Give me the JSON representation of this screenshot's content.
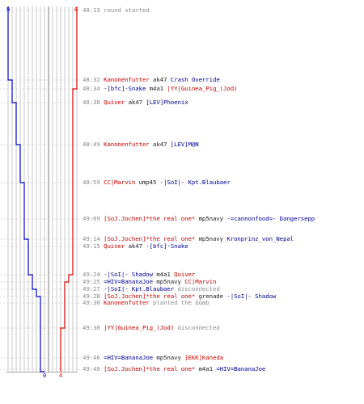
{
  "score": {
    "blue_start": "9",
    "red_start": "8",
    "blue_end": "0",
    "red_end": "4"
  },
  "colors": {
    "blue_team": "#000099",
    "red_team": "#cc0000",
    "time": "#8a8a8a",
    "grid": "#b8b8b8"
  },
  "events": [
    {
      "time": "48:13",
      "parts": [
        {
          "text": "round started",
          "c": "gray"
        }
      ]
    },
    {
      "time": "48:32",
      "parts": [
        {
          "text": "Kanonenfutter",
          "c": "red"
        },
        {
          "text": "ak47",
          "c": "dark"
        },
        {
          "text": "Crash Override",
          "c": "blue"
        }
      ]
    },
    {
      "time": "48:34",
      "parts": [
        {
          "text": "-[bfc]-Snake",
          "c": "blue"
        },
        {
          "text": "m4a1",
          "c": "dark"
        },
        {
          "text": "|YY|Guinea_Pig_(Jod)",
          "c": "red"
        }
      ]
    },
    {
      "time": "48:38",
      "parts": [
        {
          "text": "Quiver",
          "c": "red"
        },
        {
          "text": "ak47",
          "c": "dark"
        },
        {
          "text": "[LEV]Phoenix",
          "c": "blue"
        }
      ]
    },
    {
      "time": "48:49",
      "parts": [
        {
          "text": "Kanonenfutter",
          "c": "red"
        },
        {
          "text": "ak47",
          "c": "dark"
        },
        {
          "text": "[LEV]M@N",
          "c": "blue"
        }
      ]
    },
    {
      "time": "48:59",
      "parts": [
        {
          "text": "CC|Marvin",
          "c": "red"
        },
        {
          "text": "ump45",
          "c": "dark"
        },
        {
          "text": "-|SoI|- Kpt.Blaubaer",
          "c": "blue"
        }
      ]
    },
    {
      "time": "49:09",
      "parts": [
        {
          "text": "[SoJ.Jochen]*the real one*",
          "c": "red"
        },
        {
          "text": "mp5navy",
          "c": "dark"
        },
        {
          "text": "-=cannonfood=- Dangersepp",
          "c": "blue"
        }
      ]
    },
    {
      "time": "49:14",
      "parts": [
        {
          "text": "[SoJ.Jochen]*the real one*",
          "c": "red"
        },
        {
          "text": "mp5navy",
          "c": "dark"
        },
        {
          "text": "Kronprinz_von_Nepal",
          "c": "blue"
        }
      ]
    },
    {
      "time": "49:15",
      "parts": [
        {
          "text": "Quiver",
          "c": "red"
        },
        {
          "text": "ak47",
          "c": "dark"
        },
        {
          "text": "-[bfc]-Snake",
          "c": "blue"
        }
      ]
    },
    {
      "time": "49:24",
      "parts": [
        {
          "text": "-|SoI|- Shadow",
          "c": "blue"
        },
        {
          "text": "m4a1",
          "c": "dark"
        },
        {
          "text": "Quiver",
          "c": "red"
        }
      ]
    },
    {
      "time": "49:25",
      "parts": [
        {
          "text": "=HIV=BananaJoe",
          "c": "blue"
        },
        {
          "text": "mp5navy",
          "c": "dark"
        },
        {
          "text": "CC|Marvin",
          "c": "red"
        }
      ]
    },
    {
      "time": "49:27",
      "parts": [
        {
          "text": "-|SoI|- Kpt.Blaubaer",
          "c": "blue"
        },
        {
          "text": "disconnected",
          "c": "gray"
        }
      ]
    },
    {
      "time": "49:28",
      "parts": [
        {
          "text": "[SoJ.Jochen]*the real one*",
          "c": "red"
        },
        {
          "text": "grenade",
          "c": "dark"
        },
        {
          "text": "-|SoI|- Shadow",
          "c": "blue"
        }
      ]
    },
    {
      "time": "49:30",
      "parts": [
        {
          "text": "Kanonenfutter",
          "c": "red"
        },
        {
          "text": "planted the bomb",
          "c": "gray"
        }
      ]
    },
    {
      "time": "49:38",
      "parts": [
        {
          "text": "|YY|Guinea_Pig_(Jod)",
          "c": "red"
        },
        {
          "text": "disconnected",
          "c": "gray"
        }
      ]
    },
    {
      "time": "49:46",
      "parts": [
        {
          "text": "=HIV=BananaJoe",
          "c": "blue"
        },
        {
          "text": "mp5navy",
          "c": "dark"
        },
        {
          "text": "[EKK]Kaneda",
          "c": "red"
        }
      ]
    },
    {
      "time": "49:49",
      "parts": [
        {
          "text": "[SoJ.Jochen]*the real one*",
          "c": "red"
        },
        {
          "text": "m4a1",
          "c": "dark"
        },
        {
          "text": "=HIV=BananaJoe",
          "c": "blue"
        }
      ]
    }
  ]
}
